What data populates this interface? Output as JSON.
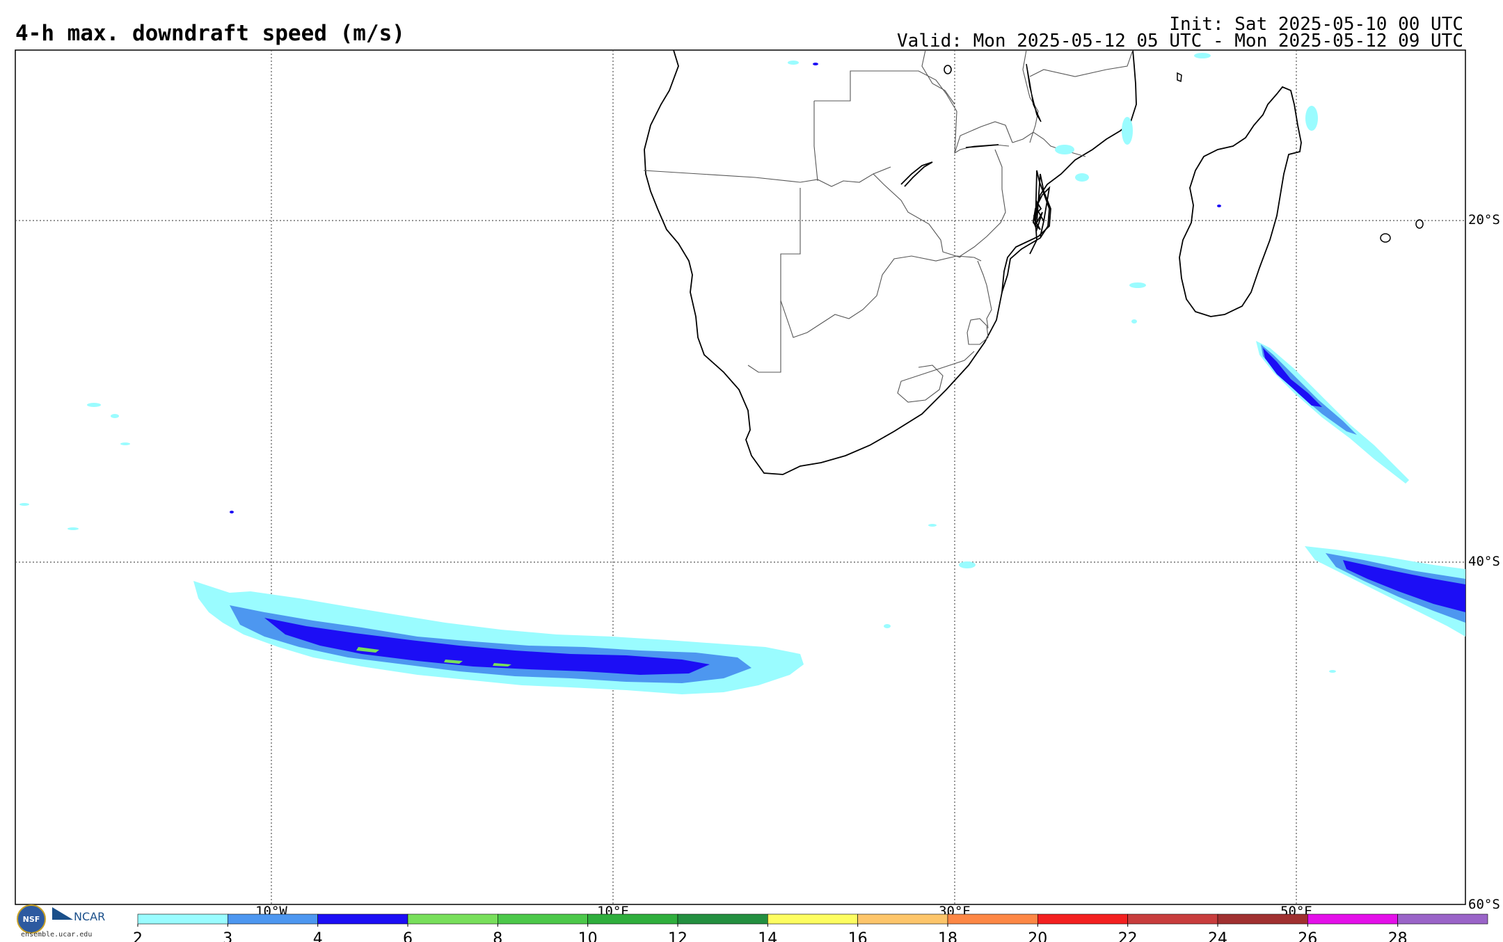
{
  "header": {
    "title": "4-h max. downdraft speed (m/s)",
    "init": "Init: Sat 2025-05-10 00 UTC",
    "valid": "Valid: Mon 2025-05-12 05 UTC - Mon 2025-05-12 09 UTC"
  },
  "map": {
    "lon_range": [
      -25,
      60
    ],
    "lat_range": [
      -60,
      -10
    ],
    "lon_labels": [
      "10°W",
      "10°E",
      "30°E",
      "50°E"
    ],
    "lat_labels": [
      "20°S",
      "40°S",
      "60°S"
    ],
    "gridline_lons": [
      -10,
      10,
      30,
      50
    ],
    "gridline_lats": [
      -20,
      -40
    ]
  },
  "colorbar": {
    "ticks": [
      "2",
      "3",
      "4",
      "6",
      "8",
      "10",
      "12",
      "14",
      "16",
      "18",
      "20",
      "22",
      "24",
      "26",
      "28"
    ],
    "colors": [
      "#9afcff",
      "#4d97f0",
      "#1c0ef5",
      "#78df5b",
      "#4cc84a",
      "#2fae3d",
      "#238f40",
      "#fdfd60",
      "#fdc56a",
      "#fd8745",
      "#f32020",
      "#c83d3d",
      "#a03030",
      "#e410e9",
      "#9a64c8"
    ]
  },
  "logos": {
    "nsf": "NSF",
    "ncar": "NCAR",
    "site": "ensemble.ucar.edu"
  }
}
